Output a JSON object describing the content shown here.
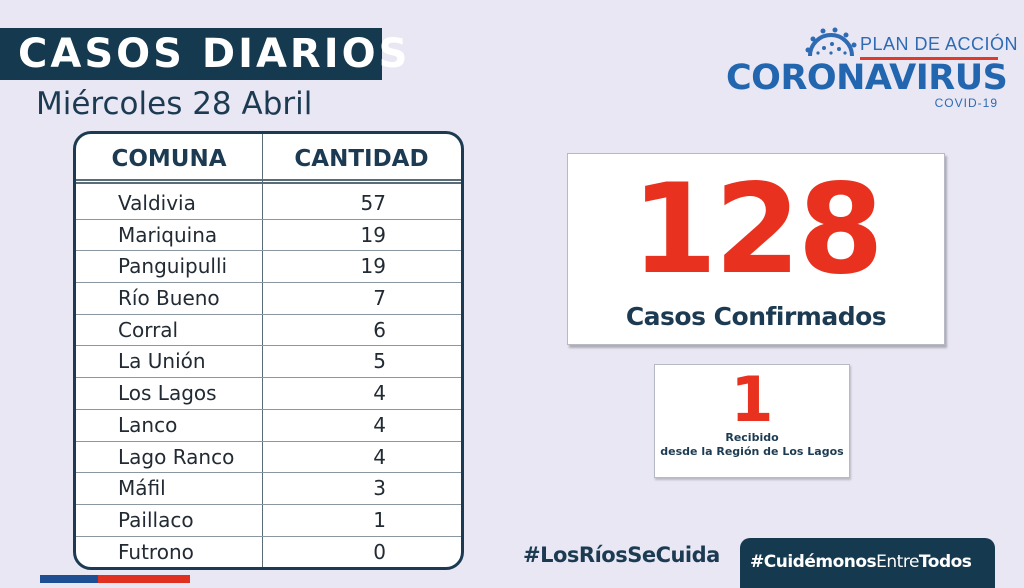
{
  "header": {
    "title": "CASOS DIARIOS",
    "date": "Miércoles 28 Abril"
  },
  "logo": {
    "plan": "PLAN DE ACCIÓN",
    "name": "CORONAVIRUS",
    "sub": "COVID-19",
    "icon": "virus-icon"
  },
  "table": {
    "headers": [
      "COMUNA",
      "CANTIDAD"
    ],
    "rows": [
      {
        "comuna": "Valdivia",
        "cantidad": "57"
      },
      {
        "comuna": "Mariquina",
        "cantidad": "19"
      },
      {
        "comuna": "Panguipulli",
        "cantidad": "19"
      },
      {
        "comuna": "Río Bueno",
        "cantidad": "7"
      },
      {
        "comuna": "Corral",
        "cantidad": "6"
      },
      {
        "comuna": "La Unión",
        "cantidad": "5"
      },
      {
        "comuna": "Los Lagos",
        "cantidad": "4"
      },
      {
        "comuna": "Lanco",
        "cantidad": "4"
      },
      {
        "comuna": "Lago Ranco",
        "cantidad": "4"
      },
      {
        "comuna": "Máfil",
        "cantidad": "3"
      },
      {
        "comuna": "Paillaco",
        "cantidad": "1"
      },
      {
        "comuna": "Futrono",
        "cantidad": "0"
      }
    ]
  },
  "total": {
    "number": "128",
    "label": "Casos Confirmados"
  },
  "received": {
    "number": "1",
    "line1": "Recibido",
    "line2": "desde la Región de Los Lagos"
  },
  "footer": {
    "hashtag1": "#LosRíosSeCuida",
    "hashtag2_a": "#",
    "hashtag2_b": "Cuidémonos",
    "hashtag2_c": "Entre",
    "hashtag2_d": "Todos"
  },
  "colors": {
    "navy": "#15394f",
    "red": "#e8321f",
    "blue": "#2366b0",
    "background": "#e8e7f3"
  }
}
